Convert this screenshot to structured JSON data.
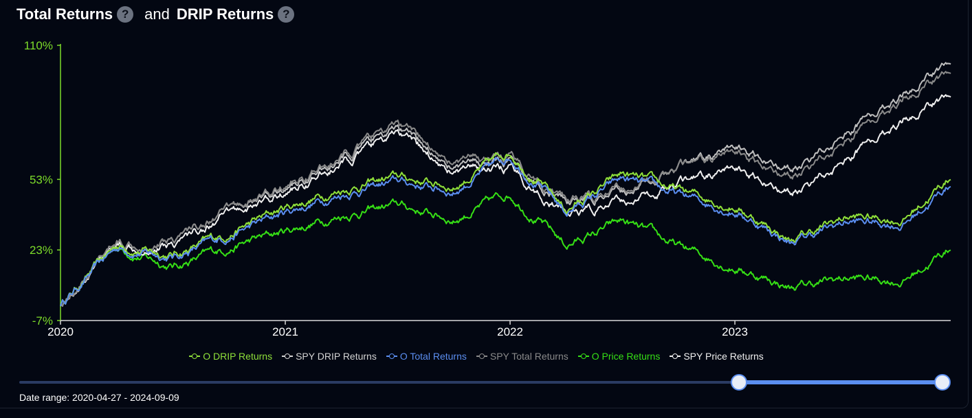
{
  "header": {
    "title_part1": "Total Returns",
    "title_and": "and",
    "title_part2": "DRIP Returns",
    "help_glyph": "?"
  },
  "colors": {
    "background": "#030712",
    "axis": "#7ddc2a",
    "o_drip": "#8fe03a",
    "spy_drip": "#bfbfbf",
    "o_total": "#5b8ef0",
    "spy_total": "#8a8a8a",
    "o_price": "#36e015",
    "spy_price": "#f0f0f0",
    "slider": "#5b8ef0"
  },
  "legend": [
    {
      "label": "O DRIP Returns",
      "color": "#8fe03a"
    },
    {
      "label": "SPY DRIP Returns",
      "color": "#d4d4d4"
    },
    {
      "label": "O Total Returns",
      "color": "#5b8ef0"
    },
    {
      "label": "SPY Total Returns",
      "color": "#8a8a8a"
    },
    {
      "label": "O Price Returns",
      "color": "#36e015"
    },
    {
      "label": "SPY Price Returns",
      "color": "#f0f0f0"
    }
  ],
  "date_range": "Date range: 2020-04-27 - 2024-09-09",
  "slider": {
    "start_fraction": 0.778,
    "end_fraction": 1.0
  },
  "chart_data": {
    "type": "line",
    "ylim": [
      -7,
      110
    ],
    "y_ticks": [
      "110%",
      "53%",
      "23%",
      "-7%"
    ],
    "y_tick_values": [
      110,
      53,
      23,
      -7
    ],
    "x_ticks": [
      "2020",
      "2021",
      "2022",
      "2023"
    ],
    "x_tick_values": [
      2020,
      2021,
      2022,
      2023
    ],
    "xlim": [
      2020.0,
      2023.96
    ],
    "x": [
      2020.0,
      2020.25,
      2020.5,
      2020.75,
      2021.0,
      2021.25,
      2021.5,
      2021.75,
      2022.0,
      2022.25,
      2022.5,
      2022.75,
      2023.0,
      2023.25,
      2023.5,
      2023.75,
      2023.96
    ],
    "series": [
      {
        "name": "O DRIP Returns",
        "values": [
          0,
          25,
          21,
          30,
          41,
          49,
          54,
          50,
          65,
          40,
          55,
          48,
          42,
          27,
          37,
          36,
          54
        ]
      },
      {
        "name": "SPY DRIP Returns",
        "values": [
          0,
          26,
          28,
          40,
          49,
          61,
          74,
          58,
          60,
          43,
          47,
          58,
          66,
          57,
          73,
          90,
          104
        ]
      },
      {
        "name": "O Total Returns",
        "values": [
          0,
          24,
          20,
          29,
          39,
          47,
          52,
          48,
          63,
          39,
          53,
          46,
          40,
          26,
          35,
          34,
          51
        ]
      },
      {
        "name": "SPY Total Returns",
        "values": [
          0,
          26,
          28,
          40,
          50,
          62,
          76,
          60,
          62,
          44,
          48,
          58,
          64,
          54,
          70,
          88,
          100
        ]
      },
      {
        "name": "O Price Returns",
        "values": [
          0,
          24,
          16,
          24,
          31,
          38,
          42,
          36,
          47,
          25,
          35,
          24,
          16,
          7,
          11,
          10,
          24
        ]
      },
      {
        "name": "SPY Price Returns",
        "values": [
          0,
          25,
          26,
          38,
          47,
          59,
          72,
          56,
          57,
          38,
          43,
          51,
          57,
          47,
          62,
          79,
          90
        ]
      }
    ]
  }
}
